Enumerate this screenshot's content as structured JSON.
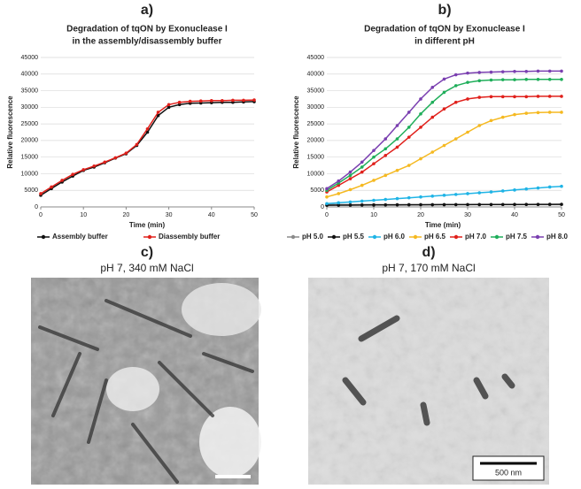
{
  "chart_data": [
    {
      "type": "line",
      "panel_label": "a)",
      "title": [
        "Degradation of tqON by Exonuclease I",
        "in the assembly/disassembly buffer"
      ],
      "x_label": "Time (min)",
      "y_label": "Relative fluorescence",
      "x": [
        0,
        2.5,
        5,
        7.5,
        10,
        12.5,
        15,
        17.5,
        20,
        22.5,
        25,
        27.5,
        30,
        32.5,
        35,
        37.5,
        40,
        42.5,
        45,
        47.5,
        50
      ],
      "xlim": [
        0,
        50
      ],
      "xticks": [
        0,
        10,
        20,
        30,
        40,
        50
      ],
      "ylim": [
        0,
        45000
      ],
      "yticks": [
        0,
        5000,
        10000,
        15000,
        20000,
        25000,
        30000,
        35000,
        40000,
        45000
      ],
      "grid": true,
      "series": [
        {
          "name": "Assembly buffer",
          "color": "#111111",
          "values": [
            3500,
            5500,
            7500,
            9300,
            11000,
            12000,
            13300,
            14700,
            16000,
            18500,
            22500,
            27500,
            30000,
            30800,
            31200,
            31300,
            31400,
            31500,
            31500,
            31600,
            31700
          ]
        },
        {
          "name": "Diassembly buffer",
          "color": "#e0201b",
          "values": [
            4000,
            6000,
            8000,
            9800,
            11200,
            12300,
            13500,
            14800,
            16200,
            18800,
            23500,
            28500,
            30800,
            31500,
            31800,
            31900,
            32000,
            32000,
            32100,
            32100,
            32200
          ]
        }
      ]
    },
    {
      "type": "line",
      "panel_label": "b)",
      "title": [
        "Degradation of tqON by Exonuclease I",
        "in different pH"
      ],
      "x_label": "Time (min)",
      "y_label": "Relative fluorescence",
      "x": [
        0,
        2.5,
        5,
        7.5,
        10,
        12.5,
        15,
        17.5,
        20,
        22.5,
        25,
        27.5,
        30,
        32.5,
        35,
        37.5,
        40,
        42.5,
        45,
        47.5,
        50
      ],
      "xlim": [
        0,
        50
      ],
      "xticks": [
        0,
        10,
        20,
        30,
        40,
        50
      ],
      "ylim": [
        0,
        45000
      ],
      "yticks": [
        0,
        5000,
        10000,
        15000,
        20000,
        25000,
        30000,
        35000,
        40000,
        45000
      ],
      "grid": true,
      "series": [
        {
          "name": "pH 5.0",
          "color": "#8a8a8a",
          "values": [
            700,
            700,
            700,
            700,
            700,
            700,
            700,
            700,
            700,
            700,
            700,
            700,
            700,
            700,
            700,
            700,
            700,
            700,
            700,
            700,
            700
          ]
        },
        {
          "name": "pH 5.5",
          "color": "#111111",
          "values": [
            500,
            520,
            540,
            560,
            580,
            600,
            620,
            640,
            650,
            660,
            680,
            690,
            700,
            710,
            720,
            730,
            740,
            750,
            760,
            780,
            800
          ]
        },
        {
          "name": "pH 6.0",
          "color": "#1fb4e6",
          "values": [
            1000,
            1250,
            1500,
            1750,
            2000,
            2250,
            2500,
            2750,
            3000,
            3250,
            3500,
            3750,
            4000,
            4250,
            4500,
            4800,
            5100,
            5400,
            5700,
            6000,
            6200
          ]
        },
        {
          "name": "pH 6.5",
          "color": "#f5b921",
          "values": [
            3000,
            4000,
            5200,
            6500,
            8000,
            9500,
            11000,
            12500,
            14500,
            16500,
            18500,
            20500,
            22500,
            24500,
            26000,
            27000,
            27800,
            28200,
            28400,
            28500,
            28500
          ]
        },
        {
          "name": "pH 7.0",
          "color": "#e0201b",
          "values": [
            4500,
            6500,
            8500,
            10500,
            13000,
            15500,
            18000,
            21000,
            24000,
            27000,
            29500,
            31500,
            32500,
            33000,
            33200,
            33200,
            33200,
            33200,
            33300,
            33300,
            33300
          ]
        },
        {
          "name": "pH 7.5",
          "color": "#1fae5a",
          "values": [
            5000,
            7200,
            9500,
            12000,
            15000,
            17500,
            20500,
            24000,
            28000,
            31500,
            34500,
            36500,
            37500,
            38000,
            38200,
            38300,
            38300,
            38400,
            38400,
            38400,
            38400
          ]
        },
        {
          "name": "pH 8.0",
          "color": "#7a3fb0",
          "values": [
            5500,
            7800,
            10500,
            13500,
            17000,
            20500,
            24500,
            28500,
            32500,
            36000,
            38500,
            39800,
            40300,
            40500,
            40600,
            40700,
            40800,
            40800,
            40900,
            40900,
            40900
          ]
        }
      ]
    }
  ],
  "micrographs": [
    {
      "panel_label": "c)",
      "caption": "pH 7, 340 mM NaCl"
    },
    {
      "panel_label": "d)",
      "caption": "pH 7, 170 mM NaCl",
      "scale_bar": "500 nm"
    }
  ]
}
